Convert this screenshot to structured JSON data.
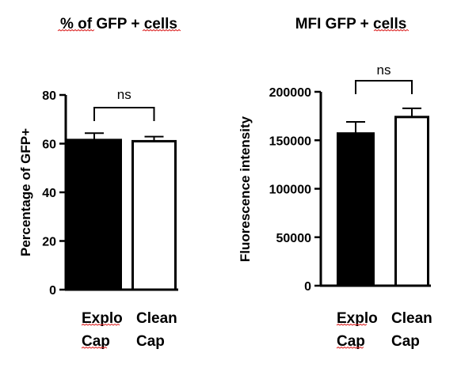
{
  "chart_data": [
    {
      "type": "bar",
      "title": "% of GFP + cells",
      "xlabel": "",
      "ylabel": "Percentage of GFP+",
      "ylim": [
        0,
        80
      ],
      "yticks": [
        "0",
        "20",
        "40",
        "60",
        "80"
      ],
      "categories": [
        "Explo Cap",
        "Clean Cap"
      ],
      "category_lines": [
        [
          "Explo",
          "Cap"
        ],
        [
          "Clean",
          "Cap"
        ]
      ],
      "values": [
        61.5,
        61.0
      ],
      "errors": [
        2.8,
        1.9
      ],
      "bar_fill": [
        "#000000",
        "#ffffff"
      ],
      "significance": "ns",
      "grid": false
    },
    {
      "type": "bar",
      "title": "MFI GFP + cells",
      "xlabel": "",
      "ylabel": "Fluorescence intensity",
      "ylim": [
        0,
        200000
      ],
      "yticks": [
        "0",
        "50000",
        "100000",
        "150000",
        "200000"
      ],
      "categories": [
        "Explo Cap",
        "Clean Cap"
      ],
      "category_lines": [
        [
          "Explo",
          "Cap"
        ],
        [
          "Clean",
          "Cap"
        ]
      ],
      "values": [
        157000,
        174000
      ],
      "errors": [
        12000,
        9000
      ],
      "bar_fill": [
        "#000000",
        "#ffffff"
      ],
      "significance": "ns",
      "grid": false
    }
  ]
}
